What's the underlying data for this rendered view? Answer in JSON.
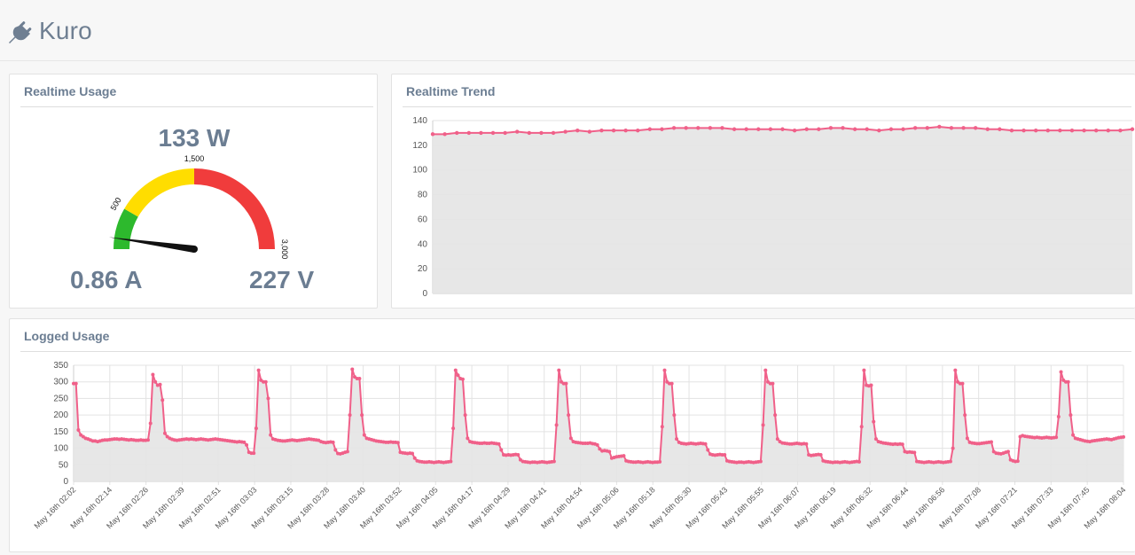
{
  "app": {
    "title": "Kuro",
    "icon": "plug-icon"
  },
  "realtime": {
    "title": "Realtime Usage",
    "power": "133 W",
    "current": "0.86 A",
    "voltage": "227 V",
    "gauge": {
      "min": 0,
      "max": 3000,
      "value": 133,
      "ticks": [
        {
          "value": 500,
          "label": "500"
        },
        {
          "value": 1500,
          "label": "1,500"
        },
        {
          "value": 3000,
          "label": "3,000"
        }
      ],
      "bands": [
        {
          "from": 0,
          "to": 500,
          "color": "#2db92d"
        },
        {
          "from": 500,
          "to": 1500,
          "color": "#ffdd00"
        },
        {
          "from": 1500,
          "to": 3000,
          "color": "#f03c3c"
        }
      ]
    }
  },
  "trend": {
    "title": "Realtime Trend",
    "chart_data": {
      "type": "area",
      "ylim": [
        0,
        140
      ],
      "yticks": [
        0,
        20,
        40,
        60,
        80,
        100,
        120,
        140
      ],
      "line_color": "#f06089",
      "fill_color": "#e4e4e4",
      "values": [
        129,
        129,
        130,
        130,
        130,
        130,
        130,
        131,
        130,
        130,
        130,
        131,
        132,
        131,
        132,
        132,
        132,
        132,
        133,
        133,
        134,
        134,
        134,
        134,
        134,
        133,
        133,
        133,
        133,
        133,
        132,
        133,
        133,
        134,
        134,
        133,
        133,
        132,
        133,
        133,
        134,
        134,
        135,
        134,
        134,
        134,
        133,
        133,
        132,
        132,
        132,
        132,
        132,
        132,
        132,
        132,
        132,
        132,
        133
      ]
    }
  },
  "logged": {
    "title": "Logged Usage",
    "chart_data": {
      "type": "area",
      "ylim": [
        0,
        350
      ],
      "yticks": [
        0,
        50,
        100,
        150,
        200,
        250,
        300,
        350
      ],
      "line_color": "#f06089",
      "fill_color": "#e4e4e4",
      "x_labels": [
        "May 16th 02:02",
        "May 16th 02:14",
        "May 16th 02:26",
        "May 16th 02:39",
        "May 16th 02:51",
        "May 16th 03:03",
        "May 16th 03:15",
        "May 16th 03:28",
        "May 16th 03:40",
        "May 16th 03:52",
        "May 16th 04:05",
        "May 16th 04:17",
        "May 16th 04:29",
        "May 16th 04:41",
        "May 16th 04:54",
        "May 16th 05:06",
        "May 16th 05:18",
        "May 16th 05:30",
        "May 16th 05:43",
        "May 16th 05:55",
        "May 16th 06:07",
        "May 16th 06:19",
        "May 16th 06:32",
        "May 16th 06:44",
        "May 16th 06:56",
        "May 16th 07:08",
        "May 16th 07:21",
        "May 16th 07:33",
        "May 16th 07:45",
        "May 16th 08:04"
      ],
      "values": [
        295,
        295,
        155,
        140,
        135,
        130,
        128,
        125,
        122,
        122,
        120,
        122,
        124,
        125,
        125,
        126,
        127,
        128,
        128,
        127,
        128,
        127,
        126,
        125,
        126,
        125,
        124,
        124,
        125,
        124,
        124,
        125,
        175,
        322,
        300,
        290,
        292,
        245,
        145,
        135,
        130,
        127,
        125,
        124,
        125,
        126,
        127,
        128,
        127,
        128,
        127,
        126,
        127,
        128,
        127,
        126,
        125,
        126,
        127,
        128,
        127,
        126,
        125,
        124,
        123,
        122,
        121,
        120,
        119,
        120,
        119,
        118,
        110,
        88,
        85,
        85,
        160,
        335,
        305,
        300,
        300,
        250,
        140,
        128,
        126,
        124,
        123,
        122,
        122,
        123,
        124,
        125,
        124,
        123,
        124,
        125,
        126,
        127,
        128,
        127,
        126,
        125,
        124,
        120,
        118,
        117,
        118,
        119,
        118,
        95,
        84,
        83,
        85,
        88,
        90,
        200,
        338,
        315,
        310,
        310,
        200,
        140,
        130,
        128,
        126,
        124,
        122,
        121,
        120,
        119,
        118,
        118,
        119,
        118,
        118,
        117,
        88,
        86,
        85,
        84,
        85,
        84,
        70,
        62,
        60,
        59,
        58,
        58,
        59,
        58,
        57,
        58,
        59,
        58,
        57,
        58,
        59,
        60,
        160,
        335,
        320,
        310,
        308,
        200,
        130,
        120,
        118,
        117,
        116,
        115,
        115,
        116,
        115,
        115,
        116,
        115,
        114,
        113,
        95,
        80,
        79,
        80,
        79,
        80,
        81,
        80,
        65,
        60,
        59,
        58,
        57,
        58,
        58,
        57,
        58,
        59,
        58,
        57,
        58,
        59,
        60,
        170,
        335,
        300,
        295,
        295,
        200,
        130,
        120,
        118,
        117,
        116,
        115,
        115,
        115,
        116,
        114,
        113,
        110,
        98,
        92,
        93,
        92,
        90,
        70,
        72,
        74,
        75,
        76,
        77,
        62,
        60,
        59,
        58,
        58,
        59,
        58,
        57,
        58,
        59,
        58,
        57,
        58,
        58,
        59,
        165,
        335,
        300,
        295,
        295,
        200,
        128,
        118,
        115,
        114,
        113,
        114,
        115,
        114,
        113,
        114,
        115,
        114,
        113,
        95,
        82,
        80,
        79,
        80,
        81,
        80,
        80,
        62,
        60,
        59,
        58,
        57,
        58,
        58,
        57,
        58,
        59,
        58,
        57,
        58,
        59,
        60,
        170,
        335,
        300,
        295,
        295,
        200,
        128,
        120,
        116,
        115,
        114,
        113,
        113,
        114,
        115,
        114,
        113,
        114,
        113,
        80,
        78,
        79,
        80,
        81,
        80,
        62,
        60,
        59,
        58,
        57,
        58,
        58,
        57,
        58,
        59,
        58,
        57,
        58,
        59,
        60,
        59,
        165,
        335,
        290,
        288,
        290,
        180,
        128,
        120,
        118,
        116,
        115,
        114,
        113,
        112,
        113,
        112,
        113,
        112,
        90,
        88,
        89,
        88,
        87,
        60,
        59,
        58,
        57,
        58,
        59,
        58,
        57,
        58,
        59,
        58,
        57,
        58,
        59,
        60,
        100,
        335,
        300,
        295,
        295,
        200,
        130,
        118,
        116,
        115,
        114,
        114,
        115,
        116,
        117,
        118,
        119,
        90,
        85,
        84,
        83,
        85,
        88,
        90,
        65,
        62,
        60,
        61,
        135,
        138,
        136,
        135,
        134,
        133,
        132,
        133,
        132,
        131,
        132,
        133,
        132,
        131,
        132,
        133,
        195,
        330,
        305,
        300,
        300,
        200,
        140,
        130,
        128,
        126,
        124,
        122,
        121,
        120,
        122,
        123,
        124,
        125,
        126,
        127,
        128,
        127,
        126,
        128,
        130,
        132,
        133,
        134
      ]
    }
  }
}
